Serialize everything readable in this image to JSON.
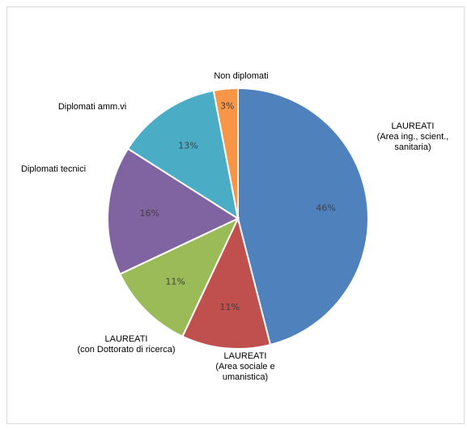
{
  "chart_data": {
    "type": "pie",
    "title": "",
    "slices": [
      {
        "label": [
          "LAUREATI",
          "(Area ing., scient.,",
          "sanitaria)"
        ],
        "value": 46,
        "value_label": "46%",
        "color": "#4f81bd"
      },
      {
        "label": [
          "LAUREATI",
          "(Area sociale e",
          "umanistica)"
        ],
        "value": 11,
        "value_label": "11%",
        "color": "#c0504d"
      },
      {
        "label": [
          "LAUREATI",
          "(con Dottorato di ricerca)"
        ],
        "value": 11,
        "value_label": "11%",
        "color": "#9bbb59"
      },
      {
        "label": [
          "Diplomati tecnici"
        ],
        "value": 16,
        "value_label": "16%",
        "color": "#8064a2"
      },
      {
        "label": [
          "Diplomati amm.vi"
        ],
        "value": 13,
        "value_label": "13%",
        "color": "#4bacc6"
      },
      {
        "label": [
          "Non diplomati"
        ],
        "value": 3,
        "value_label": "3%",
        "color": "#f79646"
      }
    ],
    "start_angle_deg": 0,
    "direction": "clockwise",
    "legend": "none"
  }
}
